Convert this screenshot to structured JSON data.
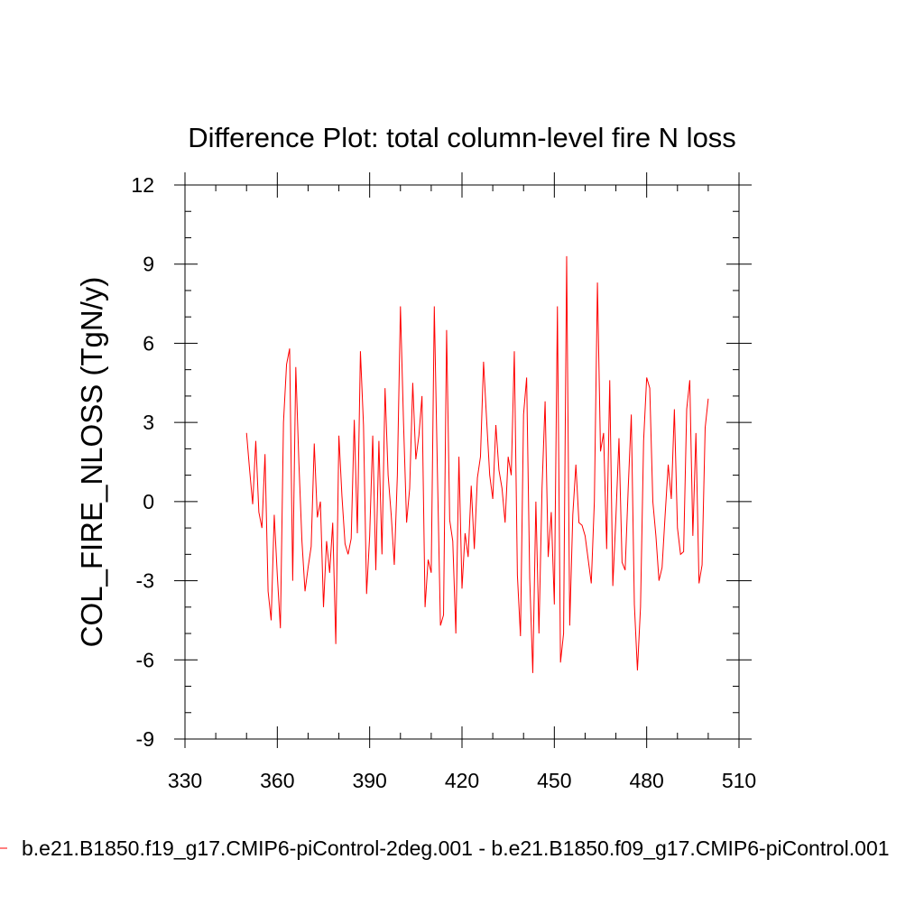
{
  "chart_data": {
    "type": "line",
    "title": "Difference Plot: total column-level fire N loss",
    "xlabel": "",
    "ylabel": "COL_FIRE_NLOSS  (TgN/y)",
    "xlim": [
      330,
      510
    ],
    "ylim": [
      -9,
      12
    ],
    "xticks": [
      330,
      360,
      390,
      420,
      450,
      480,
      510
    ],
    "yticks": [
      -9,
      -6,
      -3,
      0,
      3,
      6,
      9,
      12
    ],
    "x_minor_step": 10,
    "y_minor_step": 1,
    "grid": false,
    "legend_position": "bottom",
    "series": [
      {
        "name": "b.e21.B1850.f19_g17.CMIP6-piControl-2deg.001 - b.e21.B1850.f09_g17.CMIP6-piControl.001",
        "color": "#ff0000",
        "x_start": 350,
        "x_step": 1,
        "values": [
          2.6,
          1.2,
          -0.1,
          2.3,
          -0.4,
          -1.0,
          1.8,
          -3.4,
          -4.5,
          -0.5,
          -2.8,
          -4.8,
          3.0,
          5.2,
          5.8,
          -3.0,
          5.1,
          1.5,
          -1.5,
          -3.4,
          -2.5,
          -1.7,
          2.2,
          -0.6,
          0.0,
          -4.0,
          -1.5,
          -2.7,
          -0.8,
          -5.4,
          2.5,
          0.2,
          -1.6,
          -2.0,
          -1.4,
          3.1,
          -1.2,
          5.7,
          2.9,
          -3.5,
          -1.3,
          2.5,
          -2.6,
          2.3,
          -2.0,
          4.3,
          1.0,
          -0.5,
          -2.4,
          1.0,
          7.4,
          3.0,
          -0.8,
          0.5,
          4.5,
          1.6,
          2.5,
          4.0,
          -4.0,
          -2.2,
          -2.7,
          7.4,
          1.2,
          -4.7,
          -4.3,
          6.5,
          -0.7,
          -1.5,
          -5.0,
          1.7,
          -3.3,
          -1.2,
          -2.1,
          0.6,
          -1.8,
          0.9,
          1.7,
          5.3,
          3.1,
          1.0,
          0.1,
          2.9,
          1.2,
          0.5,
          -0.8,
          1.7,
          1.0,
          5.7,
          -2.8,
          -5.1,
          3.3,
          4.7,
          -2.9,
          -6.5,
          0.0,
          -5.0,
          0.5,
          3.8,
          -2.1,
          -0.4,
          -3.9,
          7.4,
          -6.1,
          -5.0,
          9.3,
          -4.7,
          -0.5,
          1.4,
          -0.8,
          -0.9,
          -1.3,
          -2.2,
          -3.1,
          0.0,
          8.3,
          1.9,
          2.6,
          -1.8,
          4.6,
          -3.2,
          -0.6,
          2.4,
          -2.3,
          -2.6,
          0.5,
          3.3,
          -3.9,
          -6.4,
          -4.0,
          2.3,
          4.7,
          4.3,
          0.0,
          -1.3,
          -3.0,
          -2.5,
          -0.5,
          1.4,
          0.1,
          3.5,
          -1.0,
          -2.0,
          -1.9,
          3.5,
          4.6,
          -1.3,
          2.6,
          -3.1,
          -2.4,
          2.8,
          3.9
        ]
      }
    ]
  }
}
